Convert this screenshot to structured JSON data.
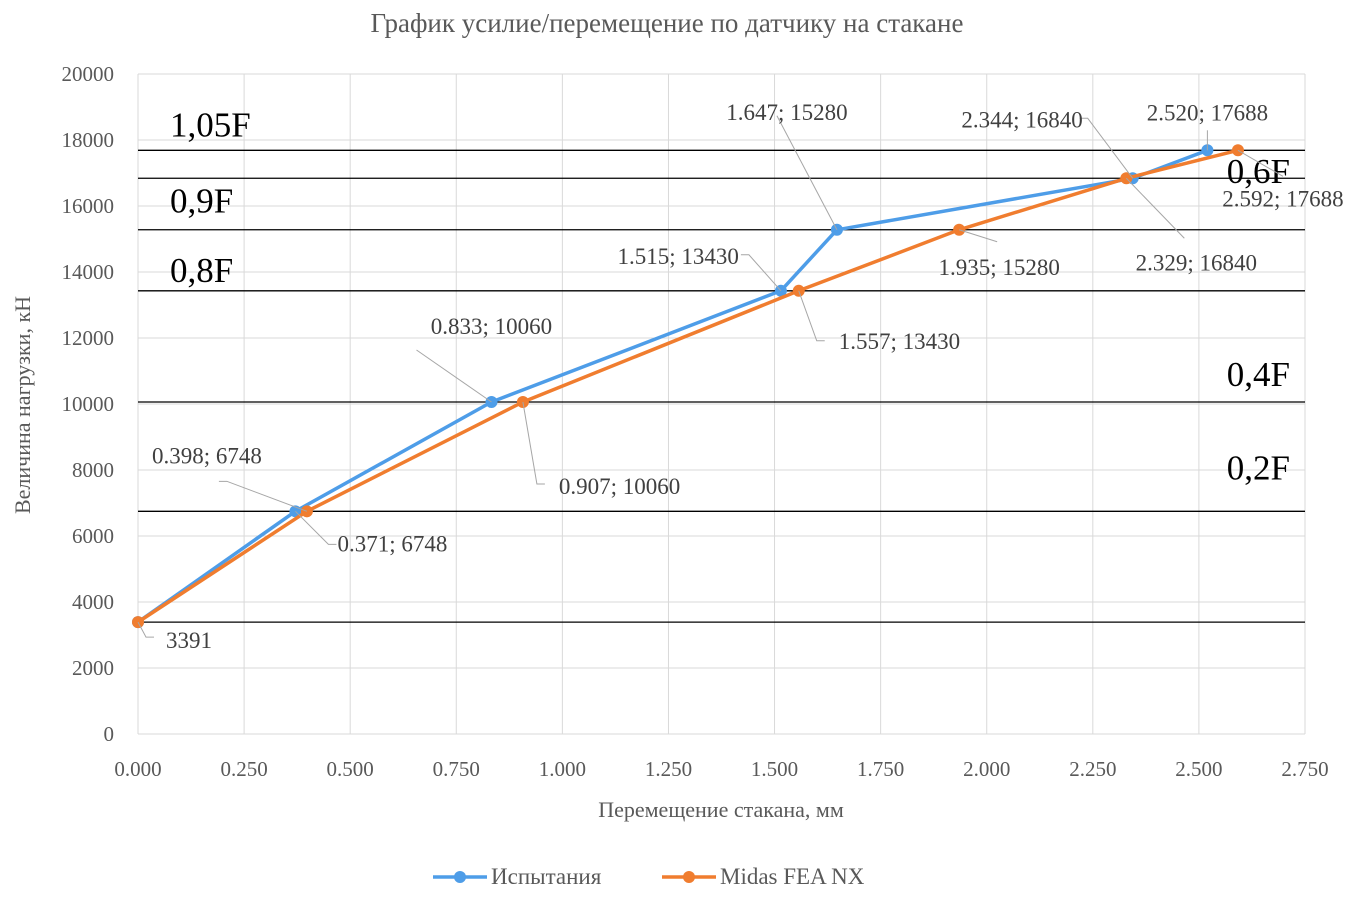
{
  "chart_data": {
    "type": "line",
    "title": "График усилие/перемещение по датчику на стакане",
    "xlabel": "Перемещение стакана, мм",
    "ylabel": "Величина нагрузки, кН",
    "xlim": [
      0,
      2.75
    ],
    "ylim": [
      0,
      20000
    ],
    "x_ticks": [
      "0.000",
      "0.250",
      "0.500",
      "0.750",
      "1.000",
      "1.250",
      "1.500",
      "1.750",
      "2.000",
      "2.250",
      "2.500",
      "2.750"
    ],
    "y_ticks": [
      "0",
      "2000",
      "4000",
      "6000",
      "8000",
      "10000",
      "12000",
      "14000",
      "16000",
      "18000",
      "20000"
    ],
    "grid": true,
    "legend_position": "bottom",
    "series": [
      {
        "name": "Испытания",
        "color": "#4e9de8",
        "x": [
          0.0,
          0.371,
          0.833,
          1.515,
          1.647,
          2.344,
          2.52
        ],
        "y": [
          3391,
          6748,
          10060,
          13430,
          15280,
          16840,
          17688
        ],
        "labels": [
          "3391",
          "0.371; 6748",
          "0.833; 10060",
          "1.515; 13430",
          "1.647; 15280",
          "2.344; 16840",
          "2.520; 17688"
        ]
      },
      {
        "name": "Midas FEA NX",
        "color": "#f07d2f",
        "x": [
          0.0,
          0.398,
          0.907,
          1.557,
          1.935,
          2.329,
          2.592
        ],
        "y": [
          3391,
          6748,
          10060,
          13430,
          15280,
          16840,
          17688
        ],
        "labels": [
          "",
          "0.398; 6748",
          "0.907; 10060",
          "1.557; 13430",
          "1.935; 15280",
          "2.329; 16840",
          "2.592; 17688"
        ]
      }
    ],
    "reference_lines": [
      {
        "label": "1,05F",
        "y": 17688
      },
      {
        "label": "0,9F",
        "y": 16840
      },
      {
        "label": "0,8F",
        "y": 15280
      },
      {
        "label": "0,6F",
        "y": 13430
      },
      {
        "label": "0,4F",
        "y": 10060
      },
      {
        "label": "0,2F",
        "y": 6748
      },
      {
        "label": "",
        "y": 3391
      }
    ]
  }
}
